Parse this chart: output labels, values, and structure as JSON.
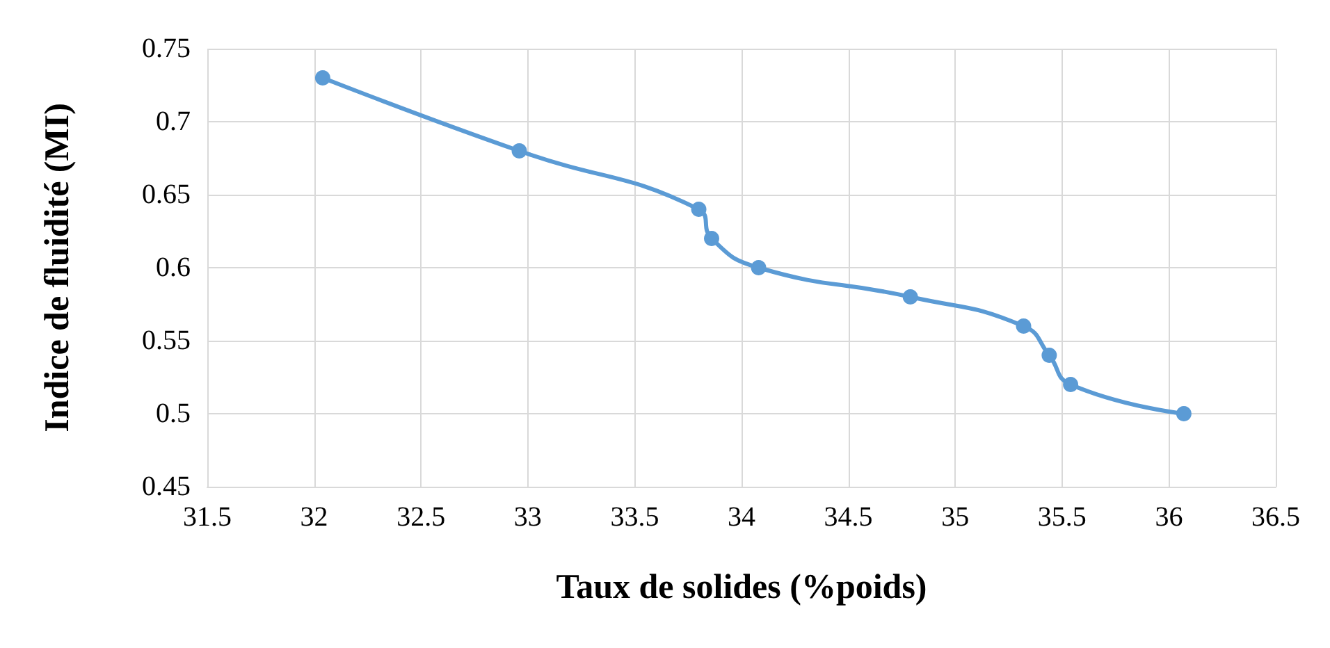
{
  "chart_data": {
    "type": "line",
    "xlabel": "Taux de solides (%poids)",
    "ylabel": "Indice de fluidité (MI)",
    "x": [
      32.04,
      32.96,
      33.8,
      33.86,
      34.08,
      34.79,
      35.32,
      35.44,
      35.54,
      36.07
    ],
    "series": [
      {
        "color": "#5b9bd5",
        "values": [
          0.73,
          0.68,
          0.64,
          0.62,
          0.6,
          0.58,
          0.56,
          0.54,
          0.52,
          0.5
        ]
      }
    ],
    "xlim": [
      31.5,
      36.5
    ],
    "xticks": [
      31.5,
      32,
      32.5,
      33,
      33.5,
      34,
      34.5,
      35,
      35.5,
      36,
      36.5
    ],
    "ylim": [
      0.45,
      0.75
    ],
    "yticks": [
      0.45,
      0.5,
      0.55,
      0.6,
      0.65,
      0.7,
      0.75
    ],
    "grid": true,
    "marker": "circle",
    "line_style": "solid"
  }
}
